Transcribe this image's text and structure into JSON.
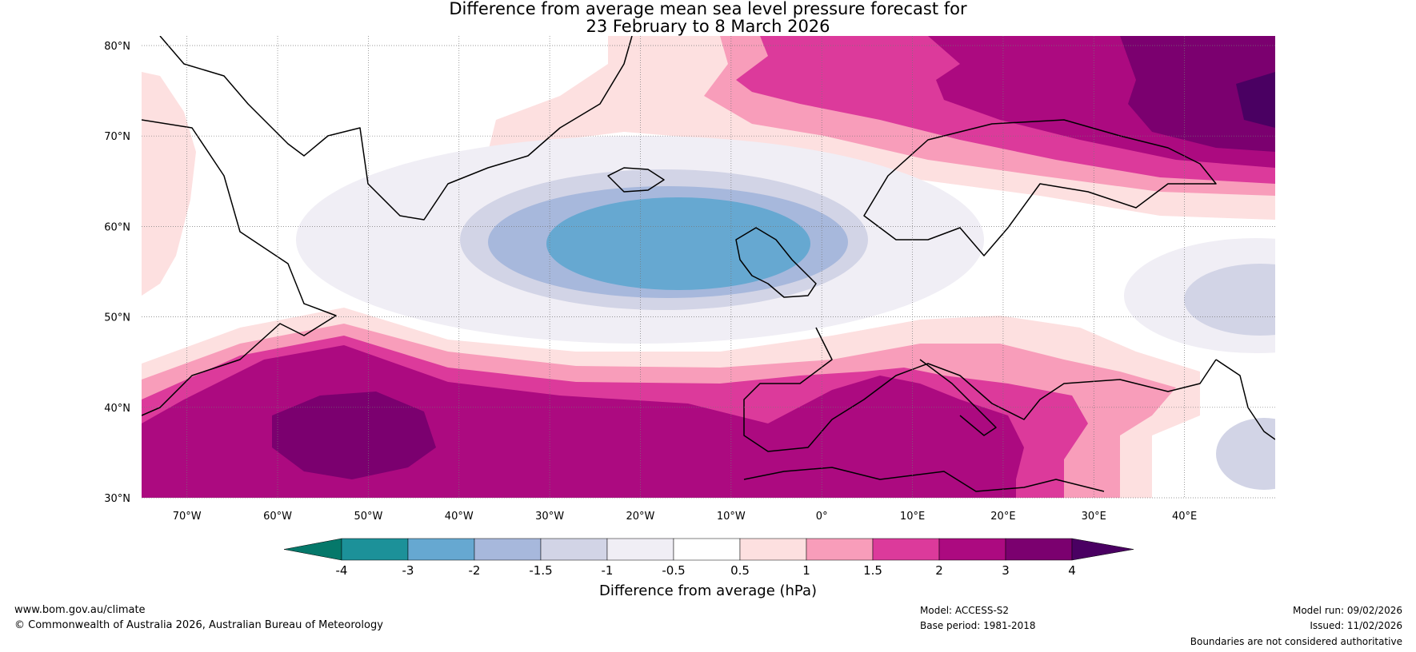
{
  "title": {
    "line1": "Difference from average mean sea level pressure forecast for",
    "line2": "23 February to 8 March 2026"
  },
  "map": {
    "lat_labels": [
      "80°N",
      "70°N",
      "60°N",
      "50°N",
      "40°N",
      "30°N"
    ],
    "lon_labels": [
      "70°W",
      "60°W",
      "50°W",
      "40°W",
      "30°W",
      "20°W",
      "10°W",
      "0°",
      "10°E",
      "20°E",
      "30°E",
      "40°E"
    ],
    "extent": {
      "lon_min": -75,
      "lon_max": 50,
      "lat_min": 30,
      "lat_max": 81
    }
  },
  "legend": {
    "title": "Difference from average (hPa)",
    "ticks": [
      "-4",
      "-3",
      "-2",
      "-1.5",
      "-1",
      "-0.5",
      "0.5",
      "1",
      "1.5",
      "2",
      "3",
      "4"
    ],
    "colors": [
      "#05786a",
      "#1c9199",
      "#66a8d1",
      "#a7b8dc",
      "#d2d4e6",
      "#f0eef5",
      "#ffffff",
      "#fde0e0",
      "#f89dba",
      "#dc3a9b",
      "#ac0a80",
      "#7b006f",
      "#4a0062"
    ]
  },
  "footer": {
    "url": "www.bom.gov.au/climate",
    "copyright": "© Commonwealth of Australia 2026, Australian Bureau of Meteorology",
    "model": "Model: ACCESS-S2",
    "base_period": "Base period: 1981-2018",
    "model_run": "Model run: 09/02/2026",
    "issued": "Issued: 11/02/2026",
    "disclaimer": "Boundaries are not considered authoritative"
  }
}
